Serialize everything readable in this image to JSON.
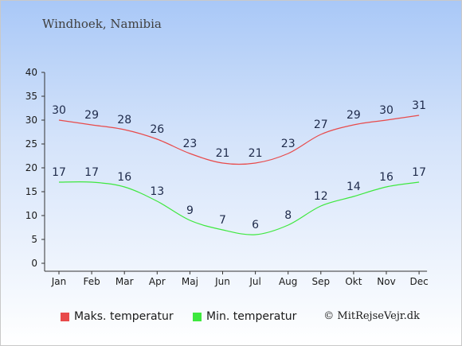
{
  "title": "Windhoek, Namibia",
  "copyright": "© MitRejseVejr.dk",
  "chart_data": {
    "type": "line",
    "categories": [
      "Jan",
      "Feb",
      "Mar",
      "Apr",
      "Maj",
      "Jun",
      "Jul",
      "Aug",
      "Sep",
      "Okt",
      "Nov",
      "Dec"
    ],
    "series": [
      {
        "name": "Maks. temperatur",
        "color": "#e84a4a",
        "values": [
          30,
          29,
          28,
          26,
          23,
          21,
          21,
          23,
          27,
          29,
          30,
          31
        ]
      },
      {
        "name": "Min. temperatur",
        "color": "#3ee83e",
        "values": [
          17,
          17,
          16,
          13,
          9,
          7,
          6,
          8,
          12,
          14,
          16,
          17
        ]
      }
    ],
    "ylim": [
      0,
      40
    ],
    "yticks": [
      0,
      5,
      10,
      15,
      20,
      25,
      30,
      35,
      40
    ],
    "grid": false,
    "legend": "bottom"
  }
}
